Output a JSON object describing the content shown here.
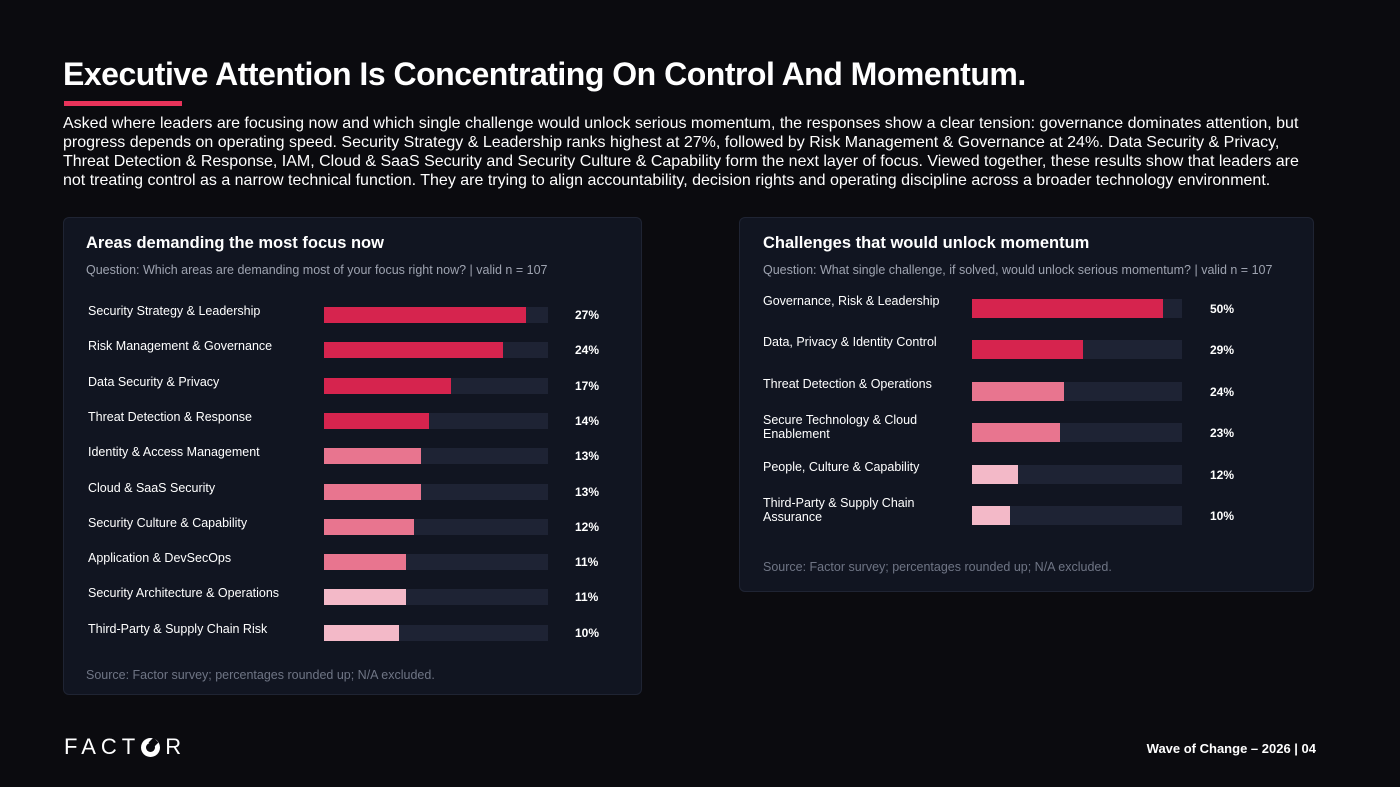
{
  "page": {
    "title": "Executive Attention Is Concentrating On Control And Momentum.",
    "intro": "Asked where leaders are focusing now and which single challenge would unlock serious momentum, the responses show a clear tension: governance dominates attention, but progress depends on operating speed. Security Strategy & Leadership ranks highest at 27%, followed by Risk Management & Governance at 24%. Data Security & Privacy, Threat Detection & Response, IAM, Cloud & SaaS Security and Security Culture & Capability form the next layer of focus. Viewed together, these results show that leaders are not treating control as a narrow technical function. They are trying to align accountability, decision rights and operating discipline across a broader technology environment.",
    "footer": "Wave of Change – 2026 | 04",
    "logo": {
      "pre": "FACT",
      "post": "R",
      "icon": "factor-o-logo-icon"
    },
    "colors": {
      "strong": "#d6244e",
      "medium": "#e8758f",
      "light": "#f3b9c8",
      "track": "#1e2334"
    }
  },
  "chart_data": [
    {
      "type": "bar",
      "orientation": "horizontal",
      "title": "Areas demanding the most focus now",
      "subtitle": "Question: Which areas are demanding most of your focus right now? | valid n = 107",
      "source": "Source: Factor survey; percentages rounded up; N/A excluded.",
      "categories": [
        "Security Strategy & Leadership",
        "Risk Management & Governance",
        "Data Security & Privacy",
        "Threat Detection & Response",
        "Identity & Access Management",
        "Cloud & SaaS Security",
        "Security Culture & Capability",
        "Application & DevSecOps",
        "Security Architecture & Operations",
        "Third-Party & Supply Chain Risk"
      ],
      "values": [
        27,
        24,
        17,
        14,
        13,
        13,
        12,
        11,
        11,
        10
      ],
      "value_labels": [
        "27%",
        "24%",
        "17%",
        "14%",
        "13%",
        "13%",
        "12%",
        "11%",
        "11%",
        "10%"
      ],
      "shades": [
        "strong",
        "strong",
        "strong",
        "strong",
        "medium",
        "medium",
        "medium",
        "medium",
        "light",
        "light"
      ],
      "xlim": [
        0,
        30
      ],
      "grid": false
    },
    {
      "type": "bar",
      "orientation": "horizontal",
      "title": "Challenges that would unlock momentum",
      "subtitle": "Question: What single challenge, if solved, would unlock serious momentum? | valid n = 107",
      "source": "Source: Factor survey; percentages rounded up; N/A excluded.",
      "categories": [
        "Governance, Risk & Leadership",
        "Data, Privacy & Identity Control",
        "Threat Detection & Operations",
        "Secure Technology & Cloud Enablement",
        "People, Culture & Capability",
        "Third-Party & Supply Chain Assurance"
      ],
      "values": [
        50,
        29,
        24,
        23,
        12,
        10
      ],
      "value_labels": [
        "50%",
        "29%",
        "24%",
        "23%",
        "12%",
        "10%"
      ],
      "shades": [
        "strong",
        "strong",
        "medium",
        "medium",
        "light",
        "light"
      ],
      "xlim": [
        0,
        55
      ],
      "grid": false
    }
  ]
}
